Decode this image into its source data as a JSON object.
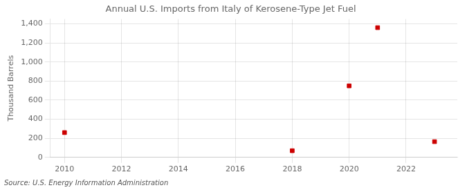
{
  "chart_data": {
    "type": "scatter",
    "title": "Annual U.S. Imports from Italy of Kerosene-Type Jet Fuel",
    "y_label": "Thousand Barrels",
    "annotations": [
      "Source: U.S. Energy Information Administration"
    ],
    "x": [
      2010,
      2018,
      2020,
      2021,
      2023
    ],
    "values": [
      260,
      70,
      750,
      1360,
      165
    ],
    "color": "#cc0000",
    "marker": "square",
    "xlim": [
      2009.5,
      2023.8
    ],
    "ylim": [
      0,
      1450
    ],
    "xticks": [
      2010,
      2012,
      2014,
      2016,
      2018,
      2020,
      2022
    ],
    "yticks": [
      0,
      200,
      400,
      600,
      800,
      {
        "value": 1000,
        "label": "1,000"
      },
      {
        "value": 1200,
        "label": "1,200"
      },
      {
        "value": 1400,
        "label": "1,400"
      }
    ],
    "grid": true
  }
}
